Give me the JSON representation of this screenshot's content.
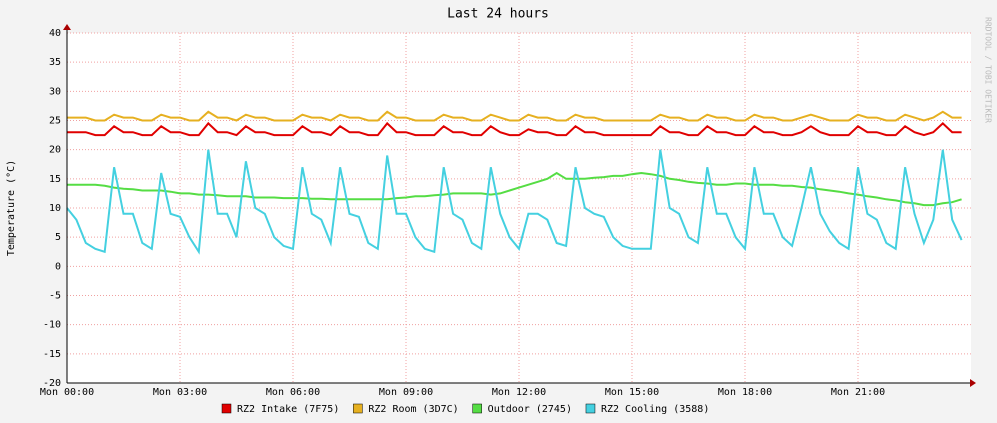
{
  "chart_data": {
    "type": "line",
    "title": "Last 24 hours",
    "y_label": "Temperature (°C)",
    "watermark": "RRDTOOL / TOBI OETIKER",
    "grid": true,
    "x": [
      0,
      0.25,
      0.5,
      0.75,
      1,
      1.25,
      1.5,
      1.75,
      2,
      2.25,
      2.5,
      2.75,
      3,
      3.25,
      3.5,
      3.75,
      4,
      4.25,
      4.5,
      4.75,
      5,
      5.25,
      5.5,
      5.75,
      6,
      6.25,
      6.5,
      6.75,
      7,
      7.25,
      7.5,
      7.75,
      8,
      8.25,
      8.5,
      8.75,
      9,
      9.25,
      9.5,
      9.75,
      10,
      10.25,
      10.5,
      10.75,
      11,
      11.25,
      11.5,
      11.75,
      12,
      12.25,
      12.5,
      12.75,
      13,
      13.25,
      13.5,
      13.75,
      14,
      14.25,
      14.5,
      14.75,
      15,
      15.25,
      15.5,
      15.75,
      16,
      16.25,
      16.5,
      16.75,
      17,
      17.25,
      17.5,
      17.75,
      18,
      18.25,
      18.5,
      18.75,
      19,
      19.25,
      19.5,
      19.75,
      20,
      20.25,
      20.5,
      20.75,
      21,
      21.25,
      21.5,
      21.75,
      22,
      22.25,
      22.5,
      22.75,
      23,
      23.25,
      23.5,
      23.75
    ],
    "xlim": [
      0,
      24
    ],
    "xticks": [
      {
        "value": 0,
        "label": "Mon 00:00"
      },
      {
        "value": 3,
        "label": "Mon 03:00"
      },
      {
        "value": 6,
        "label": "Mon 06:00"
      },
      {
        "value": 9,
        "label": "Mon 09:00"
      },
      {
        "value": 12,
        "label": "Mon 12:00"
      },
      {
        "value": 15,
        "label": "Mon 15:00"
      },
      {
        "value": 18,
        "label": "Mon 18:00"
      },
      {
        "value": 21,
        "label": "Mon 21:00"
      }
    ],
    "ylim": [
      -20,
      40
    ],
    "yticks": [
      -20,
      -15,
      -10,
      -5,
      0,
      5,
      10,
      15,
      20,
      25,
      30,
      35,
      40
    ],
    "series": [
      {
        "name": "RZ2 Intake (7F75)",
        "color": "#e00000",
        "values": [
          23,
          23,
          23,
          22.5,
          22.5,
          24,
          23,
          23,
          22.5,
          22.5,
          24,
          23,
          23,
          22.5,
          22.5,
          24.5,
          23,
          23,
          22.5,
          24,
          23,
          23,
          22.5,
          22.5,
          22.5,
          24,
          23,
          23,
          22.5,
          24,
          23,
          23,
          22.5,
          22.5,
          24.5,
          23,
          23,
          22.5,
          22.5,
          22.5,
          24,
          23,
          23,
          22.5,
          22.5,
          24,
          23,
          22.5,
          22.5,
          23.5,
          23,
          23,
          22.5,
          22.5,
          24,
          23,
          23,
          22.5,
          22.5,
          22.5,
          22.5,
          22.5,
          22.5,
          24,
          23,
          23,
          22.5,
          22.5,
          24,
          23,
          23,
          22.5,
          22.5,
          24,
          23,
          23,
          22.5,
          22.5,
          23,
          24,
          23,
          22.5,
          22.5,
          22.5,
          24,
          23,
          23,
          22.5,
          22.5,
          24,
          23,
          22.5,
          23,
          24.5,
          23,
          23
        ]
      },
      {
        "name": "RZ2 Room (3D7C)",
        "color": "#e6b020",
        "values": [
          25.5,
          25.5,
          25.5,
          25,
          25,
          26,
          25.5,
          25.5,
          25,
          25,
          26,
          25.5,
          25.5,
          25,
          25,
          26.5,
          25.5,
          25.5,
          25,
          26,
          25.5,
          25.5,
          25,
          25,
          25,
          26,
          25.5,
          25.5,
          25,
          26,
          25.5,
          25.5,
          25,
          25,
          26.5,
          25.5,
          25.5,
          25,
          25,
          25,
          26,
          25.5,
          25.5,
          25,
          25,
          26,
          25.5,
          25,
          25,
          26,
          25.5,
          25.5,
          25,
          25,
          26,
          25.5,
          25.5,
          25,
          25,
          25,
          25,
          25,
          25,
          26,
          25.5,
          25.5,
          25,
          25,
          26,
          25.5,
          25.5,
          25,
          25,
          26,
          25.5,
          25.5,
          25,
          25,
          25.5,
          26,
          25.5,
          25,
          25,
          25,
          26,
          25.5,
          25.5,
          25,
          25,
          26,
          25.5,
          25,
          25.5,
          26.5,
          25.5,
          25.5
        ]
      },
      {
        "name": "Outdoor (2745)",
        "color": "#55dd44",
        "values": [
          14,
          14,
          14,
          14,
          13.8,
          13.5,
          13.3,
          13.2,
          13,
          13,
          13,
          12.8,
          12.5,
          12.5,
          12.3,
          12.3,
          12.2,
          12,
          12,
          12,
          11.8,
          11.8,
          11.8,
          11.7,
          11.7,
          11.7,
          11.6,
          11.6,
          11.5,
          11.5,
          11.5,
          11.5,
          11.5,
          11.5,
          11.5,
          11.7,
          11.8,
          12,
          12,
          12.2,
          12.3,
          12.5,
          12.5,
          12.5,
          12.5,
          12.3,
          12.5,
          13,
          13.5,
          14,
          14.5,
          15,
          16,
          15,
          15,
          15,
          15.2,
          15.3,
          15.5,
          15.5,
          15.8,
          16,
          15.8,
          15.5,
          15,
          14.8,
          14.5,
          14.3,
          14.2,
          14,
          14,
          14.2,
          14.2,
          14,
          14,
          14,
          13.8,
          13.8,
          13.6,
          13.5,
          13.2,
          13,
          12.8,
          12.5,
          12.3,
          12,
          11.8,
          11.5,
          11.3,
          11,
          10.8,
          10.5,
          10.5,
          10.8,
          11,
          11.5
        ]
      },
      {
        "name": "RZ2 Cooling (3588)",
        "color": "#44d0e0",
        "values": [
          10,
          8,
          4,
          3,
          2.5,
          17,
          9,
          9,
          4,
          3,
          16,
          9,
          8.5,
          5,
          2.5,
          20,
          9,
          9,
          5,
          18,
          10,
          9,
          5,
          3.5,
          3,
          17,
          9,
          8,
          4,
          17,
          9,
          8.5,
          4,
          3,
          19,
          9,
          9,
          5,
          3,
          2.5,
          17,
          9,
          8,
          4,
          3,
          17,
          9,
          5,
          3,
          9,
          9,
          8,
          4,
          3.5,
          17,
          10,
          9,
          8.5,
          5,
          3.5,
          3,
          3,
          3,
          20,
          10,
          9,
          5,
          4,
          17,
          9,
          9,
          5,
          3,
          17,
          9,
          9,
          5,
          3.5,
          10,
          17,
          9,
          6,
          4,
          3,
          17,
          9,
          8,
          4,
          3,
          17,
          9,
          4,
          8,
          20,
          8,
          4.5
        ]
      }
    ]
  }
}
